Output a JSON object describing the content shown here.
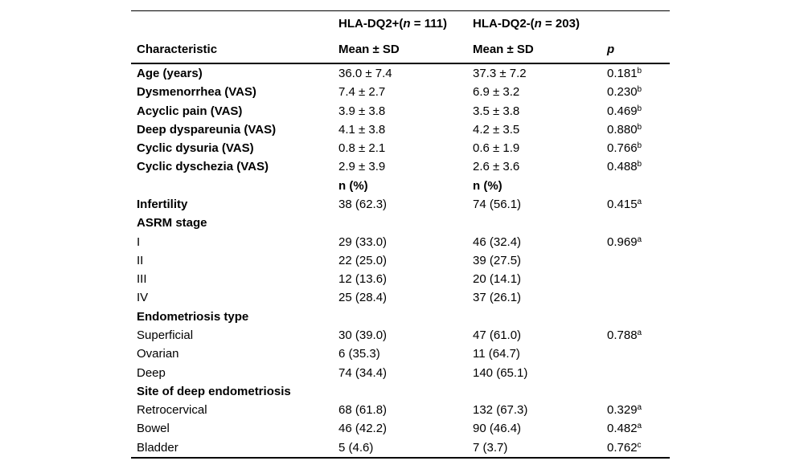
{
  "colors": {
    "text": "#000000",
    "rule": "#000000",
    "background": "#ffffff"
  },
  "table": {
    "header": {
      "group_cols": [
        {
          "prefix": "HLA-DQ2+(",
          "n": "n",
          "suffix": " = 111)"
        },
        {
          "prefix": "HLA-DQ2-(",
          "n": "n",
          "suffix": " = 203)"
        }
      ],
      "characteristic": "Characteristic",
      "col2_sub": "Mean ± SD",
      "col3_sub": "Mean ± SD",
      "p": "p"
    },
    "rows": [
      {
        "label": "Age (years)",
        "bold": true,
        "c1": "36.0 ± 7.4",
        "c2": "37.3 ± 7.2",
        "p": "0.181",
        "p_sup": "b"
      },
      {
        "label": "Dysmenorrhea (VAS)",
        "bold": true,
        "c1": "7.4 ± 2.7",
        "c2": "6.9 ± 3.2",
        "p": "0.230",
        "p_sup": "b"
      },
      {
        "label": "Acyclic pain (VAS)",
        "bold": true,
        "c1": "3.9 ± 3.8",
        "c2": "3.5 ± 3.8",
        "p": "0.469",
        "p_sup": "b"
      },
      {
        "label": "Deep dyspareunia (VAS)",
        "bold": true,
        "c1": "4.1 ± 3.8",
        "c2": "4.2 ± 3.5",
        "p": "0.880",
        "p_sup": "b"
      },
      {
        "label": "Cyclic dysuria (VAS)",
        "bold": true,
        "c1": "0.8 ± 2.1",
        "c2": "0.6 ± 1.9",
        "p": "0.766",
        "p_sup": "b"
      },
      {
        "label": "Cyclic dyschezia (VAS)",
        "bold": true,
        "c1": "2.9 ± 3.9",
        "c2": "2.6 ± 3.6",
        "p": "0.488",
        "p_sup": "b"
      },
      {
        "label": "",
        "bold": false,
        "values_bold": true,
        "c1": "n (%)",
        "c2": "n (%)",
        "p": "",
        "p_sup": ""
      },
      {
        "label": "Infertility",
        "bold": true,
        "c1": "38 (62.3)",
        "c2": "74 (56.1)",
        "p": "0.415",
        "p_sup": "a"
      },
      {
        "label": "ASRM stage",
        "bold": true,
        "c1": "",
        "c2": "",
        "p": "",
        "p_sup": ""
      },
      {
        "label": "I",
        "bold": false,
        "c1": "29 (33.0)",
        "c2": "46 (32.4)",
        "p": "0.969",
        "p_sup": "a"
      },
      {
        "label": "II",
        "bold": false,
        "c1": "22 (25.0)",
        "c2": "39 (27.5)",
        "p": "",
        "p_sup": ""
      },
      {
        "label": "III",
        "bold": false,
        "c1": "12 (13.6)",
        "c2": "20 (14.1)",
        "p": "",
        "p_sup": ""
      },
      {
        "label": "IV",
        "bold": false,
        "c1": "25 (28.4)",
        "c2": "37 (26.1)",
        "p": "",
        "p_sup": ""
      },
      {
        "label": "Endometriosis type",
        "bold": true,
        "c1": "",
        "c2": "",
        "p": "",
        "p_sup": ""
      },
      {
        "label": "Superficial",
        "bold": false,
        "c1": "30 (39.0)",
        "c2": "47 (61.0)",
        "p": "0.788",
        "p_sup": "a"
      },
      {
        "label": "Ovarian",
        "bold": false,
        "c1": "6 (35.3)",
        "c2": "11 (64.7)",
        "p": "",
        "p_sup": ""
      },
      {
        "label": "Deep",
        "bold": false,
        "c1": "74 (34.4)",
        "c2": "140 (65.1)",
        "p": "",
        "p_sup": ""
      },
      {
        "label": "Site of deep endometriosis",
        "bold": true,
        "c1": "",
        "c2": "",
        "p": "",
        "p_sup": ""
      },
      {
        "label": "Retrocervical",
        "bold": false,
        "c1": "68 (61.8)",
        "c2": "132 (67.3)",
        "p": "0.329",
        "p_sup": "a"
      },
      {
        "label": "Bowel",
        "bold": false,
        "c1": "46 (42.2)",
        "c2": "90 (46.4)",
        "p": "0.482",
        "p_sup": "a"
      },
      {
        "label": "Bladder",
        "bold": false,
        "c1": "5 (4.6)",
        "c2": "7 (3.7)",
        "p": "0.762",
        "p_sup": "c"
      }
    ]
  }
}
